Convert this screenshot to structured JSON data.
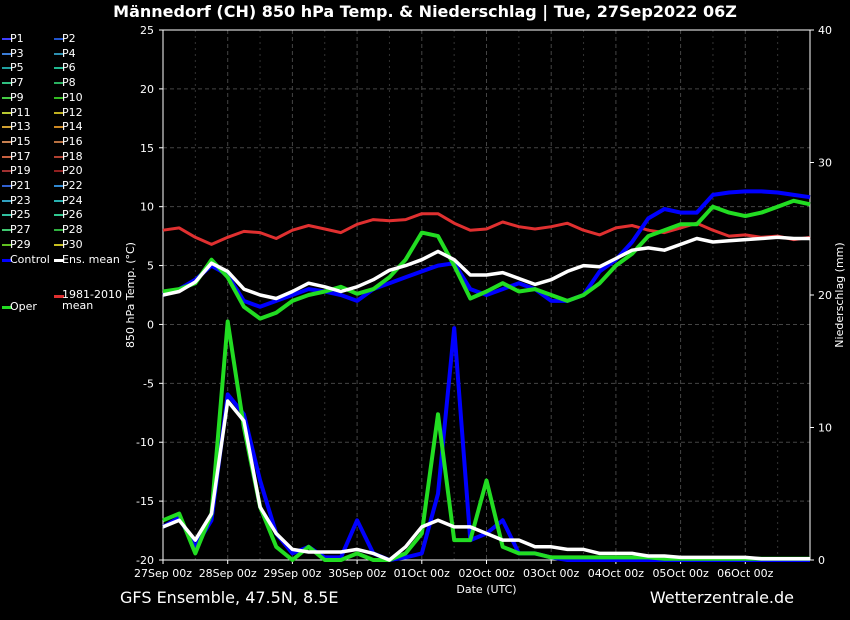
{
  "title": "Männedorf  (CH)  850 hPa Temp. & Niederschlag | Tue, 27Sep2022 06Z",
  "footer": {
    "left": "GFS Ensemble, 47.5N, 8.5E",
    "right": "Wetterzentrale.de"
  },
  "colors": {
    "background": "#000000",
    "grid": "#444444",
    "control": "#0000ff",
    "ens_mean": "#ffffff",
    "oper": "#22dd22",
    "climate_mean": "#e03030"
  },
  "legend": [
    {
      "label": "P1",
      "color": "#4040ff"
    },
    {
      "label": "P2",
      "color": "#2255cc"
    },
    {
      "label": "P3",
      "color": "#3a7dd8"
    },
    {
      "label": "P4",
      "color": "#2d8fb0"
    },
    {
      "label": "P5",
      "color": "#1fa0a0"
    },
    {
      "label": "P6",
      "color": "#20b890"
    },
    {
      "label": "P7",
      "color": "#2fc080"
    },
    {
      "label": "P8",
      "color": "#2ab060"
    },
    {
      "label": "P9",
      "color": "#44cc44"
    },
    {
      "label": "P10",
      "color": "#33bb22"
    },
    {
      "label": "P11",
      "color": "#b8c830"
    },
    {
      "label": "P12",
      "color": "#c0b020"
    },
    {
      "label": "P13",
      "color": "#d0a030"
    },
    {
      "label": "P14",
      "color": "#cc8822"
    },
    {
      "label": "P15",
      "color": "#c88050"
    },
    {
      "label": "P16",
      "color": "#b87040"
    },
    {
      "label": "P17",
      "color": "#c86040"
    },
    {
      "label": "P18",
      "color": "#b04030"
    },
    {
      "label": "P19",
      "color": "#a03030"
    },
    {
      "label": "P20",
      "color": "#902020"
    },
    {
      "label": "P21",
      "color": "#3060d0"
    },
    {
      "label": "P22",
      "color": "#3088d0"
    },
    {
      "label": "P23",
      "color": "#30a0c0"
    },
    {
      "label": "P24",
      "color": "#28b0b0"
    },
    {
      "label": "P25",
      "color": "#30c0a0"
    },
    {
      "label": "P26",
      "color": "#30c890"
    },
    {
      "label": "P27",
      "color": "#40c870"
    },
    {
      "label": "P28",
      "color": "#30b040"
    },
    {
      "label": "P29",
      "color": "#60c020"
    },
    {
      "label": "P30",
      "color": "#c8c020"
    },
    {
      "label": "Control",
      "color": "#0000ff"
    },
    {
      "label": "Ens. mean",
      "color": "#ffffff"
    },
    {
      "label": "Oper",
      "color": "#22dd22"
    },
    {
      "label": "1981-2010 mean",
      "color": "#e03030"
    }
  ],
  "chart_data": {
    "type": "line",
    "title": "Männedorf  (CH)  850 hPa Temp. & Niederschlag | Tue, 27Sep2022 06Z",
    "xlabel": "Date (UTC)",
    "ylabel": "850 hPa Temp. (°C)",
    "y2label": "Niederschlag (mm)",
    "ylim": [
      -20,
      25
    ],
    "y2lim": [
      0,
      40
    ],
    "yticks": [
      -20,
      -15,
      -10,
      -5,
      0,
      5,
      10,
      15,
      20,
      25
    ],
    "y2ticks": [
      0,
      10,
      20,
      30,
      40
    ],
    "xlim": [
      0,
      40
    ],
    "x_unit": "6-hourly steps from 27Sep 00z",
    "xticks": [
      0,
      4,
      8,
      12,
      16,
      20,
      24,
      28,
      32,
      36
    ],
    "xticklabels": [
      "27Sep 00z",
      "28Sep 00z",
      "29Sep 00z",
      "30Sep 00z",
      "01Oct 00z",
      "02Oct 00z",
      "03Oct 00z",
      "04Oct 00z",
      "05Oct 00z",
      "06Oct 00z"
    ],
    "grid": true,
    "legend_position": "left",
    "temperature_series": [
      {
        "name": "1981-2010 mean",
        "color": "#e03030",
        "x": [
          0,
          1,
          2,
          3,
          4,
          5,
          6,
          7,
          8,
          9,
          10,
          11,
          12,
          13,
          14,
          15,
          16,
          17,
          18,
          19,
          20,
          21,
          22,
          23,
          24,
          25,
          26,
          27,
          28,
          29,
          30,
          31,
          32,
          33,
          34,
          35,
          36,
          37,
          38,
          39,
          40
        ],
        "values": [
          8.0,
          8.2,
          7.4,
          6.8,
          7.4,
          7.9,
          7.8,
          7.3,
          8.0,
          8.4,
          8.1,
          7.8,
          8.5,
          8.9,
          8.8,
          8.9,
          9.4,
          9.4,
          8.6,
          8.0,
          8.1,
          8.7,
          8.3,
          8.1,
          8.3,
          8.6,
          8.0,
          7.6,
          8.2,
          8.4,
          8.0,
          7.8,
          8.2,
          8.6,
          8.0,
          7.5,
          7.6,
          7.4,
          7.5,
          7.2,
          7.4
        ]
      },
      {
        "name": "Control",
        "color": "#0000ff",
        "x": [
          0,
          1,
          2,
          3,
          4,
          5,
          6,
          7,
          8,
          9,
          10,
          11,
          12,
          13,
          14,
          15,
          16,
          17,
          18,
          19,
          20,
          21,
          22,
          23,
          24,
          25,
          26,
          27,
          28,
          29,
          30,
          31,
          32,
          33,
          34,
          35,
          36,
          37,
          38,
          39,
          40
        ],
        "values": [
          2.5,
          3.0,
          3.8,
          5.0,
          4.2,
          2.0,
          1.5,
          2.0,
          2.5,
          3.0,
          2.8,
          2.5,
          2.0,
          3.0,
          3.5,
          4.0,
          4.5,
          5.0,
          5.2,
          3.0,
          2.5,
          3.0,
          3.5,
          3.0,
          2.0,
          2.0,
          2.5,
          4.5,
          5.5,
          7.0,
          9.0,
          9.8,
          9.5,
          9.5,
          11.0,
          11.2,
          11.3,
          11.3,
          11.2,
          11.0,
          10.8
        ]
      },
      {
        "name": "Oper",
        "color": "#22dd22",
        "x": [
          0,
          1,
          2,
          3,
          4,
          5,
          6,
          7,
          8,
          9,
          10,
          11,
          12,
          13,
          14,
          15,
          16,
          17,
          18,
          19,
          20,
          21,
          22,
          23,
          24,
          25,
          26,
          27,
          28,
          29,
          30,
          31,
          32,
          33,
          34,
          35,
          36,
          37,
          38,
          39,
          40
        ],
        "values": [
          2.8,
          3.0,
          3.5,
          5.5,
          4.0,
          1.5,
          0.5,
          1.0,
          2.0,
          2.5,
          2.8,
          3.2,
          2.6,
          3.0,
          4.0,
          5.5,
          7.8,
          7.5,
          5.0,
          2.2,
          2.8,
          3.5,
          2.8,
          3.0,
          2.5,
          2.0,
          2.5,
          3.5,
          5.0,
          6.0,
          7.5,
          8.0,
          8.5,
          8.5,
          10.0,
          9.5,
          9.2,
          9.5,
          10.0,
          10.5,
          10.2
        ]
      },
      {
        "name": "Ens. mean",
        "color": "#ffffff",
        "x": [
          0,
          1,
          2,
          3,
          4,
          5,
          6,
          7,
          8,
          9,
          10,
          11,
          12,
          13,
          14,
          15,
          16,
          17,
          18,
          19,
          20,
          21,
          22,
          23,
          24,
          25,
          26,
          27,
          28,
          29,
          30,
          31,
          32,
          33,
          34,
          35,
          36,
          37,
          38,
          39,
          40
        ],
        "values": [
          2.5,
          2.8,
          3.6,
          5.2,
          4.5,
          3.0,
          2.5,
          2.2,
          2.8,
          3.5,
          3.2,
          2.8,
          3.2,
          3.8,
          4.6,
          5.0,
          5.5,
          6.2,
          5.5,
          4.2,
          4.2,
          4.4,
          3.9,
          3.4,
          3.8,
          4.5,
          5.0,
          4.9,
          5.6,
          6.3,
          6.5,
          6.3,
          6.8,
          7.3,
          7.0,
          7.1,
          7.2,
          7.3,
          7.4,
          7.3,
          7.3
        ]
      }
    ],
    "precipitation_series": [
      {
        "name": "Control",
        "color": "#0000ff",
        "x": [
          0,
          1,
          2,
          3,
          4,
          5,
          6,
          7,
          8,
          9,
          10,
          11,
          12,
          13,
          14,
          15,
          16,
          17,
          18,
          19,
          20,
          21,
          22,
          23,
          24,
          25,
          26,
          27,
          28,
          29,
          30,
          31,
          32,
          33,
          34,
          35,
          36,
          37,
          38,
          39,
          40
        ],
        "values": [
          2.5,
          3.2,
          1.0,
          3.0,
          12.5,
          11.0,
          6.0,
          2.0,
          0.5,
          1.0,
          0.2,
          0.2,
          3.0,
          0.5,
          0.0,
          0.2,
          0.5,
          5.0,
          17.5,
          1.5,
          2.0,
          3.0,
          0.5,
          0.5,
          0.2,
          0.0,
          0.0,
          0.0,
          0.0,
          0.0,
          0.0,
          0.0,
          0.0,
          0.0,
          0.0,
          0.0,
          0.0,
          0.0,
          0.0,
          0.0,
          0.0
        ]
      },
      {
        "name": "Oper",
        "color": "#22dd22",
        "x": [
          0,
          1,
          2,
          3,
          4,
          5,
          6,
          7,
          8,
          9,
          10,
          11,
          12,
          13,
          14,
          15,
          16,
          17,
          18,
          19,
          20,
          21,
          22,
          23,
          24,
          25,
          26,
          27,
          28,
          29,
          30,
          31,
          32,
          33,
          34,
          35,
          36,
          37,
          38,
          39,
          40
        ],
        "values": [
          3.0,
          3.5,
          0.5,
          3.5,
          18.0,
          10.0,
          4.0,
          1.0,
          0.0,
          1.0,
          0.0,
          0.0,
          0.5,
          0.0,
          0.0,
          0.5,
          2.0,
          11.0,
          1.5,
          1.5,
          6.0,
          1.0,
          0.5,
          0.5,
          0.2,
          0.2,
          0.2,
          0.2,
          0.2,
          0.2,
          0.2,
          0.1,
          0.1,
          0.1,
          0.1,
          0.1,
          0.1,
          0.1,
          0.1,
          0.1,
          0.1
        ]
      },
      {
        "name": "Ens. mean",
        "color": "#ffffff",
        "x": [
          0,
          1,
          2,
          3,
          4,
          5,
          6,
          7,
          8,
          9,
          10,
          11,
          12,
          13,
          14,
          15,
          16,
          17,
          18,
          19,
          20,
          21,
          22,
          23,
          24,
          25,
          26,
          27,
          28,
          29,
          30,
          31,
          32,
          33,
          34,
          35,
          36,
          37,
          38,
          39,
          40
        ],
        "values": [
          2.5,
          3.0,
          1.5,
          3.5,
          12.0,
          10.5,
          4.0,
          2.0,
          0.8,
          0.6,
          0.6,
          0.6,
          0.8,
          0.5,
          0.0,
          1.0,
          2.5,
          3.0,
          2.5,
          2.5,
          2.0,
          1.5,
          1.5,
          1.0,
          1.0,
          0.8,
          0.8,
          0.5,
          0.5,
          0.5,
          0.3,
          0.3,
          0.2,
          0.2,
          0.2,
          0.2,
          0.2,
          0.1,
          0.1,
          0.1,
          0.1
        ]
      }
    ]
  }
}
